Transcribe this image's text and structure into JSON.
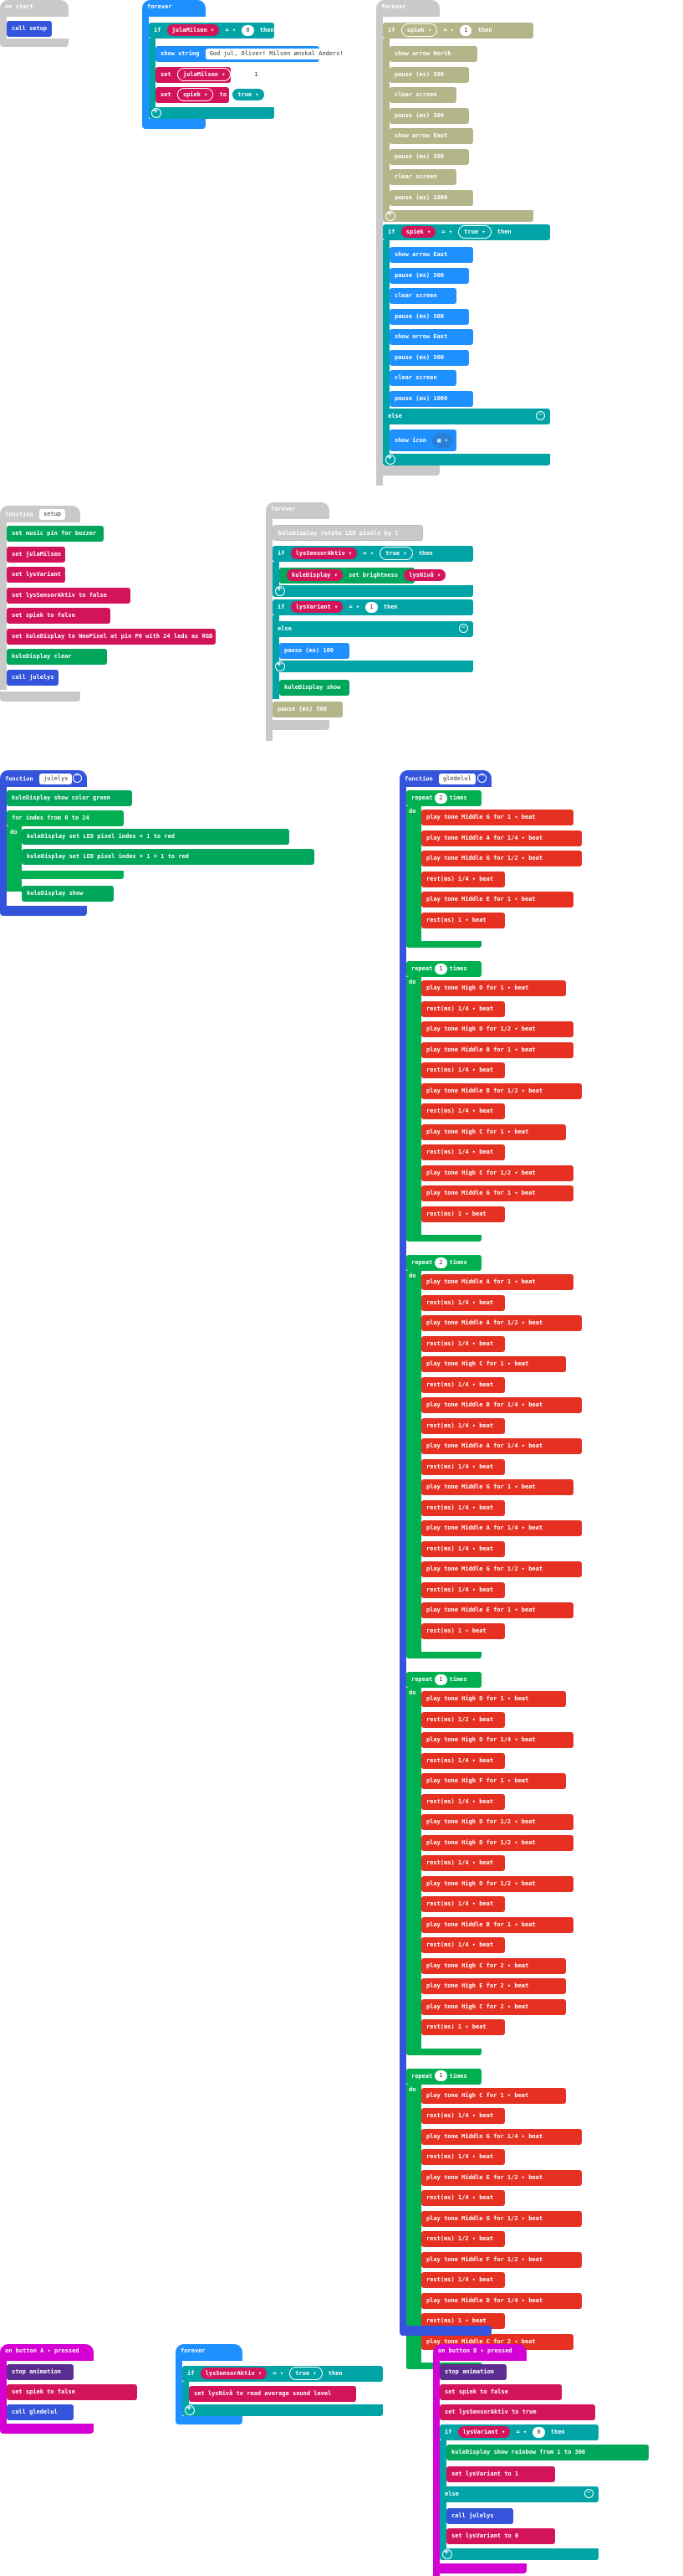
{
  "colors": {
    "events": "#c9c9c9",
    "loops": "#1e90ff",
    "logic": "#00a4a6",
    "variables": "#d4145a",
    "music": "#e63022",
    "neopixel": "#00a65a",
    "buttons": "#d400d4",
    "functions": "#3455db"
  },
  "on_start": {
    "hat": "on start",
    "call": "call setup"
  },
  "forever1": {
    "hat": "forever",
    "if_label": "if",
    "var": "julaMilsen",
    "op": "=",
    "num": "0",
    "then": "then",
    "show_string": "show string",
    "string_val": "God jul, Oliver! Milsen ønskal Anders!",
    "set1_label": "set",
    "set1_var": "julaMilsen",
    "set1_to": "to",
    "set1_val": "1",
    "set2_label": "set",
    "set2_var": "spiek",
    "set2_to": "to",
    "set2_val": "true"
  },
  "forever2": {
    "hat": "forever",
    "if_label": "if",
    "cond_var": "spiek",
    "cond_op": "=",
    "cond_num": "1",
    "then": "then",
    "rows": [
      "show arrow  North",
      "pause (ms)  500",
      "clear screen",
      "pause (ms)  500",
      "show arrow  East",
      "pause (ms)  500",
      "clear screen",
      "pause (ms)  1000"
    ],
    "if2_label": "if",
    "if2_var": "spiek",
    "if2_op": "=",
    "if2_val": "true",
    "if2_then": "then",
    "rows2": [
      "show arrow  East",
      "pause (ms)  500",
      "clear screen",
      "pause (ms)  500",
      "show arrow  East",
      "pause (ms)  500",
      "clear screen",
      "pause (ms)  1000"
    ],
    "else": "else",
    "show_icon": "show icon"
  },
  "setup": {
    "hat": "function",
    "name": "setup",
    "rows": [
      "set music pin for buzzer",
      "set  julaMilsen  to  0",
      "set  lysVariant  to  0",
      "set  lysSensorAktiv  to  false",
      "set  spiek  to  false",
      "set  kuleDisplay  to  NeoPixel at pin P0 with 24 leds as RGB (GRB format)",
      "kuleDisplay  clear",
      "call julelys"
    ]
  },
  "forever3": {
    "hat": "forever",
    "set_row": "kuleDisplay  rotate LED pixels by  1",
    "if_label": "if",
    "var": "lysSensorAktiv",
    "op": "=",
    "val": "true",
    "then": "then",
    "brightness": "kuleDisplay  set brightness  lysNivå",
    "if2_label": "if",
    "if2_var": "lysVariant",
    "if2_op": "=",
    "if2_val": "1",
    "if2_then": "then",
    "else": "else",
    "pause": "pause (ms)  100",
    "show": "kuleDisplay  show",
    "pause2": "pause (ms)  500"
  },
  "julelys": {
    "hat": "function",
    "name": "julelys",
    "rows": [
      "kuleDisplay  show color  green",
      "for  index  from 0 to  24",
      "do",
      "kuleDisplay  set LED pixel  index  +  1  to  red",
      "kuleDisplay  set LED pixel  index  +  1  +  1  to  red",
      "kuleDisplay  show"
    ]
  },
  "glede": {
    "hat": "function",
    "name": "gledelul",
    "repeat_label": "repeat",
    "times_label": "times",
    "do_label": "do",
    "groups": [
      {
        "times": "2",
        "rows": [
          "play tone  Middle G  for  1 ▾ beat",
          "play tone  Middle A  for  1/4 ▾ beat",
          "play tone  Middle G  for  1/2 ▾ beat",
          "rest(ms)  1/4 ▾ beat",
          "play tone  Middle E  for  1 ▾ beat",
          "rest(ms)  1 ▾ beat"
        ]
      },
      {
        "times": "1",
        "rows": [
          "play tone  High D  for  1 ▾ beat",
          "rest(ms)  1/4 ▾ beat",
          "play tone  High D  for  1/2 ▾ beat",
          "play tone  Middle B  for  1 ▾ beat",
          "rest(ms)  1/4 ▾ beat",
          "play tone  Middle B  for  1/2 ▾ beat",
          "rest(ms)  1/4 ▾ beat",
          "play tone  High C  for  1 ▾ beat",
          "rest(ms)  1/4 ▾ beat",
          "play tone  High C  for  1/2 ▾ beat",
          "play tone  Middle G  for  1 ▾ beat",
          "rest(ms)  1 ▾ beat"
        ]
      },
      {
        "times": "2",
        "rows": [
          "play tone  Middle A  for  1 ▾ beat",
          "rest(ms)  1/4 ▾ beat",
          "play tone  Middle A  for  1/2 ▾ beat",
          "rest(ms)  1/4 ▾ beat",
          "play tone  High C  for  1 ▾ beat",
          "rest(ms)  1/4 ▾ beat",
          "play tone  Middle B  for  1/4 ▾ beat",
          "rest(ms)  1/4 ▾ beat",
          "play tone  Middle A  for  1/4 ▾ beat",
          "rest(ms)  1/4 ▾ beat",
          "play tone  Middle G  for  1 ▾ beat",
          "rest(ms)  1/4 ▾ beat",
          "play tone  Middle A  for  1/4 ▾ beat",
          "rest(ms)  1/4 ▾ beat",
          "play tone  Middle G  for  1/2 ▾ beat",
          "rest(ms)  1/4 ▾ beat",
          "play tone  Middle E  for  1 ▾ beat",
          "rest(ms)  1 ▾ beat"
        ]
      },
      {
        "times": "1",
        "rows": [
          "play tone  High D  for  1 ▾ beat",
          "rest(ms)  1/2 ▾ beat",
          "play tone  High D  for  1/4 ▾ beat",
          "rest(ms)  1/4 ▾ beat",
          "play tone  High F  for  1 ▾ beat",
          "rest(ms)  1/4 ▾ beat",
          "play tone  High D  for  1/2 ▾ beat",
          "play tone  High D  for  1/2 ▾ beat",
          "rest(ms)  1/4 ▾ beat",
          "play tone  High D  for  1/2 ▾ beat",
          "rest(ms)  1/4 ▾ beat",
          "play tone  Middle B  for  1 ▾ beat",
          "rest(ms)  1/4 ▾ beat",
          "play tone  High C  for  2 ▾ beat",
          "play tone  High E  for  2 ▾ beat",
          "play tone  High C  for  2 ▾ beat",
          "rest(ms)  1 ▾ beat"
        ]
      },
      {
        "times": "1",
        "rows": [
          "play tone  High C  for  1 ▾ beat",
          "rest(ms)  1/4 ▾ beat",
          "play tone  Middle G  for  1/4 ▾ beat",
          "rest(ms)  1/4 ▾ beat",
          "play tone  Middle E  for  1/2 ▾ beat",
          "rest(ms)  1/4 ▾ beat",
          "play tone  Middle G  for  1/2 ▾ beat",
          "rest(ms)  1/2 ▾ beat",
          "play tone  Middle F  for  1/2 ▾ beat",
          "rest(ms)  1/4 ▾ beat",
          "play tone  Middle D  for  1/4 ▾ beat",
          "rest(ms)  1 ▾ beat",
          "play tone  Middle C  for  2 ▾ beat"
        ]
      }
    ]
  },
  "btnA": {
    "hat": "on button  A ▾  pressed",
    "row1": "stop animation",
    "row2": "set  spiek  to  false",
    "row3": "call gledelul"
  },
  "forever4": {
    "hat": "forever",
    "if_label": "if",
    "var": "lysSensorAktiv",
    "op": "=",
    "val": "true",
    "then": "then",
    "set_row": "set  lysNivå  to  read average sound level"
  },
  "btnB": {
    "hat": "on button  B ▾  pressed",
    "row1": "stop animation",
    "row2": "set  spiek  to  false",
    "row3": "set  lysSensorAktiv  to  true",
    "if_label": "if",
    "if_var": "lysVariant",
    "if_op": "=",
    "if_val": "0",
    "if_then": "then",
    "rainbow": "kuleDisplay  show rainbow from  1  to  360",
    "set_row": "set  lysVariant  to  1",
    "else": "else",
    "call": "call julelys",
    "set_row2": "set  lysVariant  to  0"
  }
}
